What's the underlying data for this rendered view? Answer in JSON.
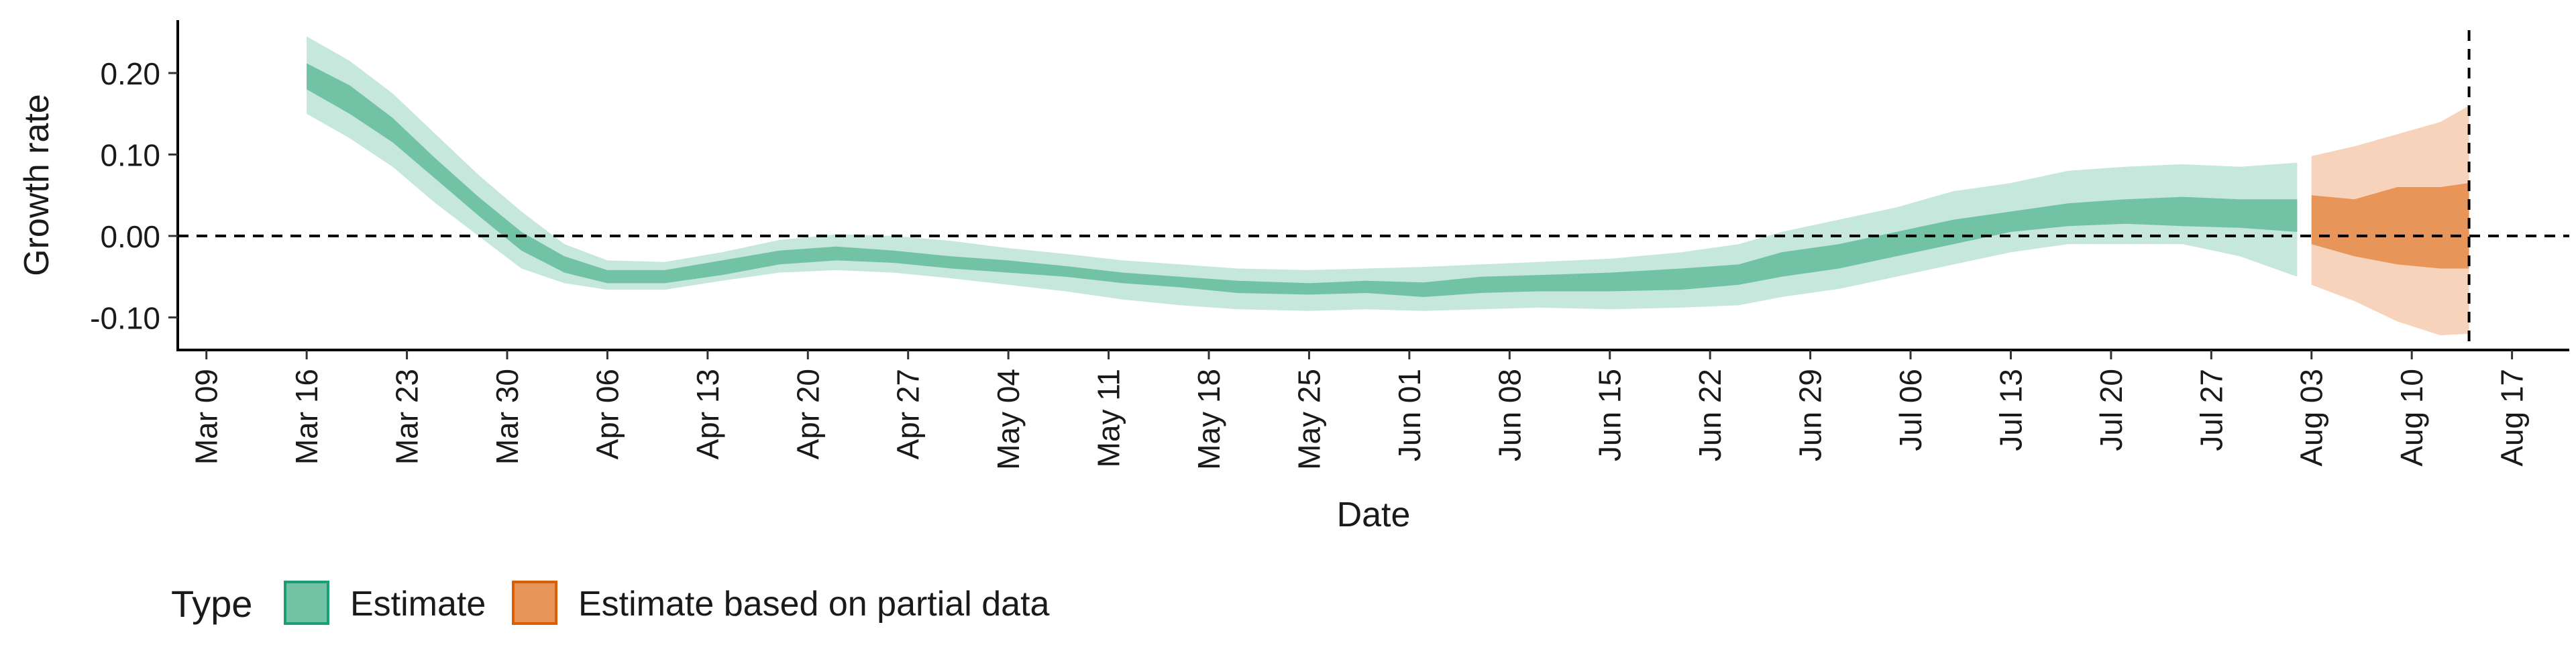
{
  "chart_data": {
    "type": "area",
    "xlabel": "Date",
    "ylabel": "Growth rate",
    "x_domain": [
      "2020-03-07",
      "2020-08-21"
    ],
    "ylim": [
      -0.14,
      0.265
    ],
    "y_ticks": [
      {
        "value": 0.2,
        "label": "0.20"
      },
      {
        "value": 0.1,
        "label": "0.10"
      },
      {
        "value": 0.0,
        "label": "0.00"
      },
      {
        "value": -0.1,
        "label": "-0.10"
      }
    ],
    "x_ticks": [
      {
        "date": "2020-03-09",
        "label": "Mar 09"
      },
      {
        "date": "2020-03-16",
        "label": "Mar 16"
      },
      {
        "date": "2020-03-23",
        "label": "Mar 23"
      },
      {
        "date": "2020-03-30",
        "label": "Mar 30"
      },
      {
        "date": "2020-04-06",
        "label": "Apr 06"
      },
      {
        "date": "2020-04-13",
        "label": "Apr 13"
      },
      {
        "date": "2020-04-20",
        "label": "Apr 20"
      },
      {
        "date": "2020-04-27",
        "label": "Apr 27"
      },
      {
        "date": "2020-05-04",
        "label": "May 04"
      },
      {
        "date": "2020-05-11",
        "label": "May 11"
      },
      {
        "date": "2020-05-18",
        "label": "May 18"
      },
      {
        "date": "2020-05-25",
        "label": "May 25"
      },
      {
        "date": "2020-06-01",
        "label": "Jun 01"
      },
      {
        "date": "2020-06-08",
        "label": "Jun 08"
      },
      {
        "date": "2020-06-15",
        "label": "Jun 15"
      },
      {
        "date": "2020-06-22",
        "label": "Jun 22"
      },
      {
        "date": "2020-06-29",
        "label": "Jun 29"
      },
      {
        "date": "2020-07-06",
        "label": "Jul 06"
      },
      {
        "date": "2020-07-13",
        "label": "Jul 13"
      },
      {
        "date": "2020-07-20",
        "label": "Jul 20"
      },
      {
        "date": "2020-07-27",
        "label": "Jul 27"
      },
      {
        "date": "2020-08-03",
        "label": "Aug 03"
      },
      {
        "date": "2020-08-10",
        "label": "Aug 10"
      },
      {
        "date": "2020-08-17",
        "label": "Aug 17"
      }
    ],
    "reference_lines": {
      "horizontal_y": 0.0,
      "vertical_date": "2020-08-14"
    },
    "legend": {
      "title": "Type",
      "position": "bottom-left",
      "items": [
        "Estimate",
        "Estimate based on partial data"
      ]
    },
    "series": [
      {
        "name": "Estimate",
        "color_inner": "#72c2a6",
        "color_outer": "#c6e7db",
        "points": [
          {
            "date": "2020-03-16",
            "outer": [
              0.15,
              0.245
            ],
            "inner": [
              0.18,
              0.212
            ]
          },
          {
            "date": "2020-03-19",
            "outer": [
              0.12,
              0.215
            ],
            "inner": [
              0.15,
              0.185
            ]
          },
          {
            "date": "2020-03-22",
            "outer": [
              0.085,
              0.175
            ],
            "inner": [
              0.115,
              0.145
            ]
          },
          {
            "date": "2020-03-25",
            "outer": [
              0.04,
              0.125
            ],
            "inner": [
              0.07,
              0.095
            ]
          },
          {
            "date": "2020-03-28",
            "outer": [
              0.0,
              0.075
            ],
            "inner": [
              0.025,
              0.048
            ]
          },
          {
            "date": "2020-03-31",
            "outer": [
              -0.04,
              0.03
            ],
            "inner": [
              -0.018,
              0.005
            ]
          },
          {
            "date": "2020-04-03",
            "outer": [
              -0.058,
              -0.01
            ],
            "inner": [
              -0.045,
              -0.025
            ]
          },
          {
            "date": "2020-04-06",
            "outer": [
              -0.066,
              -0.03
            ],
            "inner": [
              -0.058,
              -0.042
            ]
          },
          {
            "date": "2020-04-10",
            "outer": [
              -0.066,
              -0.032
            ],
            "inner": [
              -0.058,
              -0.042
            ]
          },
          {
            "date": "2020-04-14",
            "outer": [
              -0.055,
              -0.02
            ],
            "inner": [
              -0.048,
              -0.03
            ]
          },
          {
            "date": "2020-04-18",
            "outer": [
              -0.045,
              -0.005
            ],
            "inner": [
              -0.035,
              -0.018
            ]
          },
          {
            "date": "2020-04-22",
            "outer": [
              -0.042,
              0.002
            ],
            "inner": [
              -0.03,
              -0.013
            ]
          },
          {
            "date": "2020-04-26",
            "outer": [
              -0.045,
              0.0
            ],
            "inner": [
              -0.033,
              -0.018
            ]
          },
          {
            "date": "2020-04-30",
            "outer": [
              -0.052,
              -0.006
            ],
            "inner": [
              -0.04,
              -0.025
            ]
          },
          {
            "date": "2020-05-04",
            "outer": [
              -0.06,
              -0.015
            ],
            "inner": [
              -0.045,
              -0.03
            ]
          },
          {
            "date": "2020-05-08",
            "outer": [
              -0.068,
              -0.022
            ],
            "inner": [
              -0.05,
              -0.037
            ]
          },
          {
            "date": "2020-05-12",
            "outer": [
              -0.078,
              -0.03
            ],
            "inner": [
              -0.058,
              -0.045
            ]
          },
          {
            "date": "2020-05-16",
            "outer": [
              -0.085,
              -0.035
            ],
            "inner": [
              -0.063,
              -0.05
            ]
          },
          {
            "date": "2020-05-20",
            "outer": [
              -0.09,
              -0.04
            ],
            "inner": [
              -0.07,
              -0.055
            ]
          },
          {
            "date": "2020-05-25",
            "outer": [
              -0.092,
              -0.042
            ],
            "inner": [
              -0.072,
              -0.058
            ]
          },
          {
            "date": "2020-05-29",
            "outer": [
              -0.09,
              -0.04
            ],
            "inner": [
              -0.07,
              -0.055
            ]
          },
          {
            "date": "2020-06-02",
            "outer": [
              -0.092,
              -0.038
            ],
            "inner": [
              -0.075,
              -0.057
            ]
          },
          {
            "date": "2020-06-06",
            "outer": [
              -0.09,
              -0.035
            ],
            "inner": [
              -0.07,
              -0.05
            ]
          },
          {
            "date": "2020-06-10",
            "outer": [
              -0.088,
              -0.032
            ],
            "inner": [
              -0.068,
              -0.048
            ]
          },
          {
            "date": "2020-06-15",
            "outer": [
              -0.09,
              -0.028
            ],
            "inner": [
              -0.068,
              -0.045
            ]
          },
          {
            "date": "2020-06-20",
            "outer": [
              -0.088,
              -0.02
            ],
            "inner": [
              -0.066,
              -0.04
            ]
          },
          {
            "date": "2020-06-24",
            "outer": [
              -0.085,
              -0.01
            ],
            "inner": [
              -0.06,
              -0.035
            ]
          },
          {
            "date": "2020-06-27",
            "outer": [
              -0.075,
              0.005
            ],
            "inner": [
              -0.05,
              -0.02
            ]
          },
          {
            "date": "2020-07-01",
            "outer": [
              -0.065,
              0.02
            ],
            "inner": [
              -0.04,
              -0.01
            ]
          },
          {
            "date": "2020-07-05",
            "outer": [
              -0.05,
              0.035
            ],
            "inner": [
              -0.025,
              0.005
            ]
          },
          {
            "date": "2020-07-09",
            "outer": [
              -0.035,
              0.055
            ],
            "inner": [
              -0.01,
              0.02
            ]
          },
          {
            "date": "2020-07-13",
            "outer": [
              -0.02,
              0.065
            ],
            "inner": [
              0.005,
              0.03
            ]
          },
          {
            "date": "2020-07-17",
            "outer": [
              -0.01,
              0.08
            ],
            "inner": [
              0.012,
              0.04
            ]
          },
          {
            "date": "2020-07-21",
            "outer": [
              -0.01,
              0.085
            ],
            "inner": [
              0.015,
              0.045
            ]
          },
          {
            "date": "2020-07-25",
            "outer": [
              -0.01,
              0.088
            ],
            "inner": [
              0.012,
              0.048
            ]
          },
          {
            "date": "2020-07-29",
            "outer": [
              -0.025,
              0.085
            ],
            "inner": [
              0.01,
              0.045
            ]
          },
          {
            "date": "2020-08-02",
            "outer": [
              -0.05,
              0.09
            ],
            "inner": [
              0.005,
              0.045
            ]
          }
        ]
      },
      {
        "name": "Estimate based on partial data",
        "color_inner": "#e8955a",
        "color_outer": "#f6d3ba",
        "points": [
          {
            "date": "2020-08-03",
            "outer": [
              -0.06,
              0.098
            ],
            "inner": [
              -0.01,
              0.05
            ]
          },
          {
            "date": "2020-08-06",
            "outer": [
              -0.08,
              0.11
            ],
            "inner": [
              -0.025,
              0.045
            ]
          },
          {
            "date": "2020-08-09",
            "outer": [
              -0.105,
              0.125
            ],
            "inner": [
              -0.035,
              0.06
            ]
          },
          {
            "date": "2020-08-12",
            "outer": [
              -0.122,
              0.14
            ],
            "inner": [
              -0.04,
              0.06
            ]
          },
          {
            "date": "2020-08-14",
            "outer": [
              -0.12,
              0.16
            ],
            "inner": [
              -0.04,
              0.065
            ]
          }
        ]
      }
    ]
  }
}
